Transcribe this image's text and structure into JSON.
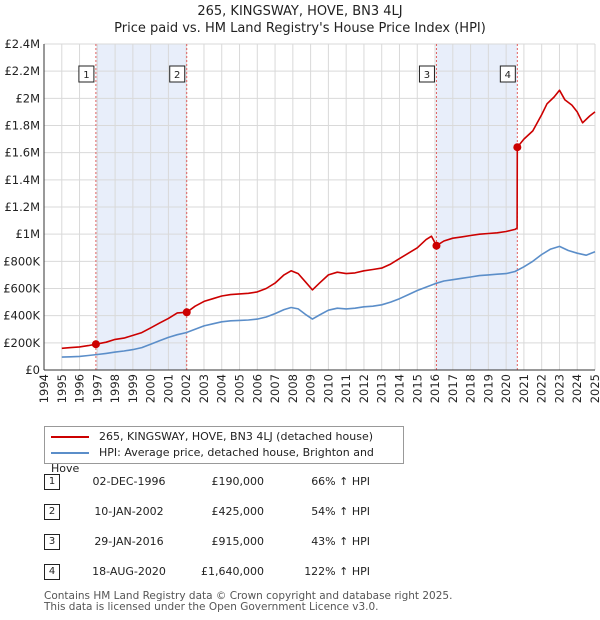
{
  "chart_data": {
    "type": "line",
    "title": "265, KINGSWAY, HOVE, BN3 4LJ",
    "subtitle": "Price paid vs. HM Land Registry's House Price Index (HPI)",
    "xlim": [
      1994,
      2025
    ],
    "ylim": [
      0,
      2400000
    ],
    "y_ticks": [
      0,
      200000,
      400000,
      600000,
      800000,
      1000000,
      1200000,
      1400000,
      1600000,
      1800000,
      2000000,
      2200000,
      2400000
    ],
    "y_tick_labels": [
      "£0",
      "£200K",
      "£400K",
      "£600K",
      "£800K",
      "£1M",
      "£1.2M",
      "£1.4M",
      "£1.6M",
      "£1.8M",
      "£2M",
      "£2.2M",
      "£2.4M"
    ],
    "x_ticks": [
      1994,
      1995,
      1996,
      1997,
      1998,
      1999,
      2000,
      2001,
      2002,
      2003,
      2004,
      2005,
      2006,
      2007,
      2008,
      2009,
      2010,
      2011,
      2012,
      2013,
      2014,
      2015,
      2016,
      2017,
      2018,
      2019,
      2020,
      2021,
      2022,
      2023,
      2024,
      2025
    ],
    "x_tick_labels": [
      "1994",
      "1995",
      "1996",
      "1997",
      "1998",
      "1999",
      "2000",
      "2001",
      "2002",
      "2003",
      "2004",
      "2005",
      "2006",
      "2007",
      "2008",
      "2009",
      "2010",
      "2011",
      "2012",
      "2013",
      "2014",
      "2015",
      "2016",
      "2017",
      "2018",
      "2019",
      "2020",
      "2021",
      "2022",
      "2023",
      "2024",
      "2025"
    ],
    "grid": true,
    "shaded_spans": [
      [
        1996.92,
        2002.03
      ],
      [
        2016.08,
        2020.63
      ]
    ],
    "series": [
      {
        "name": "265, KINGSWAY, HOVE, BN3 4LJ (detached house)",
        "color": "#cc0000",
        "points": [
          [
            1995.0,
            160000
          ],
          [
            1995.5,
            165000
          ],
          [
            1996.0,
            170000
          ],
          [
            1996.5,
            180000
          ],
          [
            1996.92,
            190000
          ],
          [
            1997.5,
            205000
          ],
          [
            1998.0,
            225000
          ],
          [
            1998.5,
            235000
          ],
          [
            1999.0,
            255000
          ],
          [
            1999.5,
            275000
          ],
          [
            2000.0,
            310000
          ],
          [
            2000.5,
            345000
          ],
          [
            2001.0,
            380000
          ],
          [
            2001.5,
            420000
          ],
          [
            2002.03,
            425000
          ],
          [
            2002.5,
            470000
          ],
          [
            2003.0,
            505000
          ],
          [
            2003.5,
            525000
          ],
          [
            2004.0,
            545000
          ],
          [
            2004.5,
            555000
          ],
          [
            2005.0,
            560000
          ],
          [
            2005.5,
            565000
          ],
          [
            2006.0,
            575000
          ],
          [
            2006.5,
            600000
          ],
          [
            2007.0,
            640000
          ],
          [
            2007.5,
            700000
          ],
          [
            2007.9,
            730000
          ],
          [
            2008.3,
            710000
          ],
          [
            2008.7,
            650000
          ],
          [
            2009.1,
            590000
          ],
          [
            2009.5,
            640000
          ],
          [
            2010.0,
            700000
          ],
          [
            2010.5,
            720000
          ],
          [
            2011.0,
            710000
          ],
          [
            2011.5,
            715000
          ],
          [
            2012.0,
            730000
          ],
          [
            2012.5,
            740000
          ],
          [
            2013.0,
            750000
          ],
          [
            2013.5,
            780000
          ],
          [
            2014.0,
            820000
          ],
          [
            2014.5,
            860000
          ],
          [
            2015.0,
            900000
          ],
          [
            2015.5,
            960000
          ],
          [
            2015.8,
            985000
          ],
          [
            2016.08,
            915000
          ],
          [
            2016.5,
            950000
          ],
          [
            2017.0,
            970000
          ],
          [
            2017.5,
            980000
          ],
          [
            2018.0,
            990000
          ],
          [
            2018.5,
            1000000
          ],
          [
            2019.0,
            1005000
          ],
          [
            2019.5,
            1010000
          ],
          [
            2020.0,
            1020000
          ],
          [
            2020.5,
            1035000
          ],
          [
            2020.62,
            1045000
          ],
          [
            2020.63,
            1640000
          ],
          [
            2021.0,
            1700000
          ],
          [
            2021.5,
            1760000
          ],
          [
            2022.0,
            1880000
          ],
          [
            2022.3,
            1960000
          ],
          [
            2022.7,
            2010000
          ],
          [
            2023.0,
            2060000
          ],
          [
            2023.3,
            1990000
          ],
          [
            2023.7,
            1950000
          ],
          [
            2024.0,
            1900000
          ],
          [
            2024.3,
            1820000
          ],
          [
            2024.7,
            1870000
          ],
          [
            2025.0,
            1900000
          ]
        ]
      },
      {
        "name": "HPI: Average price, detached house, Brighton and Hove",
        "color": "#5b8ec9",
        "points": [
          [
            1995.0,
            95000
          ],
          [
            1995.5,
            97000
          ],
          [
            1996.0,
            100000
          ],
          [
            1996.5,
            107000
          ],
          [
            1997.0,
            114000
          ],
          [
            1997.5,
            122000
          ],
          [
            1998.0,
            132000
          ],
          [
            1998.5,
            140000
          ],
          [
            1999.0,
            150000
          ],
          [
            1999.5,
            165000
          ],
          [
            2000.0,
            190000
          ],
          [
            2000.5,
            215000
          ],
          [
            2001.0,
            240000
          ],
          [
            2001.5,
            260000
          ],
          [
            2002.0,
            275000
          ],
          [
            2002.5,
            300000
          ],
          [
            2003.0,
            325000
          ],
          [
            2003.5,
            340000
          ],
          [
            2004.0,
            355000
          ],
          [
            2004.5,
            362000
          ],
          [
            2005.0,
            365000
          ],
          [
            2005.5,
            368000
          ],
          [
            2006.0,
            375000
          ],
          [
            2006.5,
            390000
          ],
          [
            2007.0,
            415000
          ],
          [
            2007.5,
            445000
          ],
          [
            2007.9,
            460000
          ],
          [
            2008.3,
            450000
          ],
          [
            2008.7,
            410000
          ],
          [
            2009.1,
            375000
          ],
          [
            2009.5,
            405000
          ],
          [
            2010.0,
            440000
          ],
          [
            2010.5,
            455000
          ],
          [
            2011.0,
            450000
          ],
          [
            2011.5,
            455000
          ],
          [
            2012.0,
            465000
          ],
          [
            2012.5,
            470000
          ],
          [
            2013.0,
            480000
          ],
          [
            2013.5,
            500000
          ],
          [
            2014.0,
            525000
          ],
          [
            2014.5,
            555000
          ],
          [
            2015.0,
            585000
          ],
          [
            2015.5,
            610000
          ],
          [
            2016.0,
            635000
          ],
          [
            2016.5,
            655000
          ],
          [
            2017.0,
            665000
          ],
          [
            2017.5,
            675000
          ],
          [
            2018.0,
            685000
          ],
          [
            2018.5,
            695000
          ],
          [
            2019.0,
            700000
          ],
          [
            2019.5,
            705000
          ],
          [
            2020.0,
            710000
          ],
          [
            2020.5,
            725000
          ],
          [
            2021.0,
            760000
          ],
          [
            2021.5,
            800000
          ],
          [
            2022.0,
            850000
          ],
          [
            2022.5,
            890000
          ],
          [
            2023.0,
            910000
          ],
          [
            2023.5,
            880000
          ],
          [
            2024.0,
            860000
          ],
          [
            2024.5,
            845000
          ],
          [
            2025.0,
            870000
          ]
        ]
      }
    ],
    "sale_markers": [
      {
        "label": "1",
        "x": 1996.92,
        "y": 190000
      },
      {
        "label": "2",
        "x": 2002.03,
        "y": 425000
      },
      {
        "label": "3",
        "x": 2016.08,
        "y": 915000
      },
      {
        "label": "4",
        "x": 2020.63,
        "y": 1640000
      }
    ],
    "legend_position": "below"
  },
  "sales_table": [
    {
      "num": "1",
      "date": "02-DEC-1996",
      "price": "£190,000",
      "hpi": "66% ↑ HPI"
    },
    {
      "num": "2",
      "date": "10-JAN-2002",
      "price": "£425,000",
      "hpi": "54% ↑ HPI"
    },
    {
      "num": "3",
      "date": "29-JAN-2016",
      "price": "£915,000",
      "hpi": "43% ↑ HPI"
    },
    {
      "num": "4",
      "date": "18-AUG-2020",
      "price": "£1,640,000",
      "hpi": "122% ↑ HPI"
    }
  ],
  "footer": {
    "line1": "Contains HM Land Registry data © Crown copyright and database right 2025.",
    "line2": "This data is licensed under the Open Government Licence v3.0."
  }
}
